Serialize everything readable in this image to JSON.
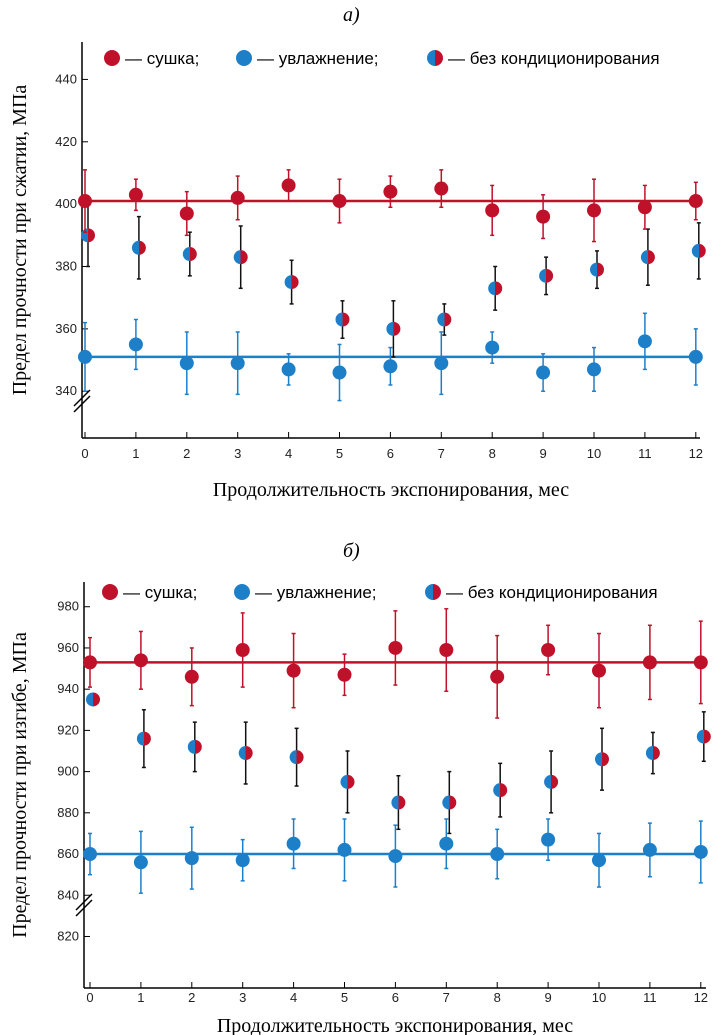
{
  "charts": [
    {
      "panel_label": "а)",
      "ylabel": "Предел прочности при сжатии, МПа",
      "xlabel": "Продолжительность экспонирования, мес",
      "legend": {
        "drying": "— сушка;",
        "wetting": "— увлажнение;",
        "none": "— без кондиционирования"
      },
      "x_ticks": [
        "0",
        "1",
        "2",
        "3",
        "4",
        "5",
        "6",
        "7",
        "8",
        "9",
        "10",
        "11",
        "12"
      ],
      "y_ticks": [
        "340",
        "360",
        "380",
        "400",
        "420",
        "440"
      ]
    },
    {
      "panel_label": "б)",
      "ylabel": "Предел прочности при изгибе, МПа",
      "xlabel": "Продолжительность экспонирования, мес",
      "legend": {
        "drying": "— сушка;",
        "wetting": "— увлажнение;",
        "none": "— без кондиционирования"
      },
      "x_ticks": [
        "0",
        "1",
        "2",
        "3",
        "4",
        "5",
        "6",
        "7",
        "8",
        "9",
        "10",
        "11",
        "12"
      ],
      "y_ticks": [
        "820",
        "840",
        "860",
        "880",
        "900",
        "920",
        "940",
        "960",
        "980"
      ]
    }
  ],
  "colors": {
    "drying": "#c0112b",
    "wetting": "#1e7fc9",
    "error_bar_none": "#111111"
  },
  "chart_data": [
    {
      "type": "scatter",
      "x": [
        0,
        1,
        2,
        3,
        4,
        5,
        6,
        7,
        8,
        9,
        10,
        11,
        12
      ],
      "ylim": [
        325,
        452
      ],
      "axis_break": true,
      "series": [
        {
          "name": "сушка",
          "values": [
            401,
            403,
            397,
            402,
            406,
            401,
            404,
            405,
            398,
            396,
            398,
            399,
            401
          ],
          "errors": [
            10,
            5,
            7,
            7,
            5,
            7,
            5,
            6,
            8,
            7,
            10,
            7,
            6
          ],
          "mean_line": 401
        },
        {
          "name": "увлажнение",
          "values": [
            351,
            355,
            349,
            349,
            347,
            346,
            348,
            349,
            354,
            346,
            347,
            356,
            351
          ],
          "errors": [
            11,
            8,
            10,
            10,
            5,
            9,
            6,
            10,
            5,
            6,
            7,
            9,
            9
          ],
          "mean_line": 351
        },
        {
          "name": "без кондиционирования",
          "values": [
            390,
            386,
            384,
            383,
            375,
            363,
            360,
            363,
            373,
            377,
            379,
            383,
            385
          ],
          "errors": [
            10,
            10,
            7,
            10,
            7,
            6,
            9,
            5,
            7,
            6,
            6,
            9,
            9
          ]
        }
      ]
    },
    {
      "type": "scatter",
      "x": [
        0,
        1,
        2,
        3,
        4,
        5,
        6,
        7,
        8,
        9,
        10,
        11,
        12
      ],
      "ylim": [
        795,
        992
      ],
      "axis_break": true,
      "series": [
        {
          "name": "сушка",
          "values": [
            953,
            954,
            946,
            959,
            949,
            947,
            960,
            959,
            946,
            959,
            949,
            953,
            953
          ],
          "errors": [
            12,
            14,
            14,
            18,
            18,
            10,
            18,
            20,
            20,
            12,
            18,
            18,
            20
          ],
          "mean_line": 953
        },
        {
          "name": "увлажнение",
          "values": [
            860,
            856,
            858,
            857,
            865,
            862,
            859,
            865,
            860,
            867,
            857,
            862,
            861
          ],
          "errors": [
            10,
            15,
            15,
            10,
            12,
            15,
            15,
            12,
            12,
            10,
            13,
            13,
            15
          ],
          "mean_line": 860
        },
        {
          "name": "без кондиционирования",
          "values": [
            935,
            916,
            912,
            909,
            907,
            895,
            885,
            885,
            891,
            895,
            906,
            909,
            917
          ],
          "errors": [
            0,
            14,
            12,
            15,
            14,
            15,
            13,
            15,
            13,
            15,
            15,
            10,
            12
          ]
        }
      ]
    }
  ]
}
